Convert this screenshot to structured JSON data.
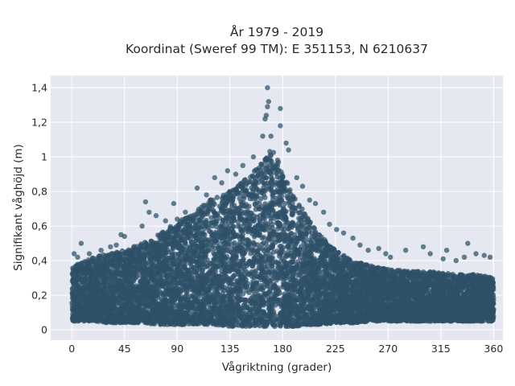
{
  "chart_data": {
    "type": "scatter",
    "title_line1": "År 1979 - 2019",
    "title_line2": "Koordinat (Sweref 99 TM): E 351153, N 6210637",
    "xlabel": "Vågriktning (grader)",
    "ylabel": "Signifikant våghöjd (m)",
    "xlim": [
      -18,
      368
    ],
    "ylim": [
      -0.06,
      1.47
    ],
    "x_ticks": [
      0,
      45,
      90,
      135,
      180,
      225,
      270,
      315,
      360
    ],
    "x_tick_labels": [
      "0",
      "45",
      "90",
      "135",
      "180",
      "225",
      "270",
      "315",
      "360"
    ],
    "y_ticks": [
      0,
      0.2,
      0.4,
      0.6,
      0.8,
      1.0,
      1.2,
      1.4
    ],
    "y_tick_labels": [
      "0",
      "0,2",
      "0,4",
      "0,6",
      "0,8",
      "1",
      "1,2",
      "1,4"
    ],
    "grid": true,
    "legend": "none",
    "marker_color": "#2e5168",
    "background_color": "#e5e8f0",
    "envelope": {
      "x": [
        0,
        10,
        20,
        30,
        45,
        60,
        75,
        90,
        105,
        120,
        135,
        150,
        160,
        165,
        170,
        175,
        180,
        190,
        200,
        210,
        225,
        240,
        255,
        270,
        285,
        300,
        315,
        330,
        345,
        360
      ],
      "y_max": [
        0.36,
        0.4,
        0.42,
        0.44,
        0.46,
        0.5,
        0.56,
        0.62,
        0.68,
        0.76,
        0.8,
        0.88,
        0.95,
        1.0,
        1.05,
        1.0,
        0.92,
        0.78,
        0.66,
        0.56,
        0.46,
        0.4,
        0.37,
        0.35,
        0.34,
        0.34,
        0.33,
        0.32,
        0.32,
        0.3
      ],
      "y_min": [
        0.05,
        0.05,
        0.05,
        0.04,
        0.04,
        0.04,
        0.03,
        0.03,
        0.03,
        0.03,
        0.02,
        0.02,
        0.02,
        0.02,
        0.02,
        0.02,
        0.02,
        0.02,
        0.03,
        0.03,
        0.04,
        0.04,
        0.05,
        0.05,
        0.05,
        0.05,
        0.05,
        0.05,
        0.05,
        0.05
      ]
    },
    "outliers": [
      {
        "x": 167,
        "y": 1.4
      },
      {
        "x": 168,
        "y": 1.32
      },
      {
        "x": 167,
        "y": 1.29
      },
      {
        "x": 166,
        "y": 1.24
      },
      {
        "x": 178,
        "y": 1.28
      },
      {
        "x": 178,
        "y": 1.18
      },
      {
        "x": 165,
        "y": 1.22
      },
      {
        "x": 163,
        "y": 1.12
      },
      {
        "x": 170,
        "y": 1.12
      },
      {
        "x": 183,
        "y": 1.08
      },
      {
        "x": 185,
        "y": 1.04
      },
      {
        "x": 155,
        "y": 1.0
      },
      {
        "x": 2,
        "y": 0.44
      },
      {
        "x": 5,
        "y": 0.42
      },
      {
        "x": 8,
        "y": 0.5
      },
      {
        "x": 15,
        "y": 0.44
      },
      {
        "x": 25,
        "y": 0.46
      },
      {
        "x": 33,
        "y": 0.48
      },
      {
        "x": 38,
        "y": 0.49
      },
      {
        "x": 42,
        "y": 0.55
      },
      {
        "x": 45,
        "y": 0.54
      },
      {
        "x": 60,
        "y": 0.6
      },
      {
        "x": 63,
        "y": 0.74
      },
      {
        "x": 66,
        "y": 0.68
      },
      {
        "x": 72,
        "y": 0.66
      },
      {
        "x": 80,
        "y": 0.63
      },
      {
        "x": 87,
        "y": 0.73
      },
      {
        "x": 90,
        "y": 0.64
      },
      {
        "x": 97,
        "y": 0.68
      },
      {
        "x": 107,
        "y": 0.82
      },
      {
        "x": 115,
        "y": 0.78
      },
      {
        "x": 122,
        "y": 0.88
      },
      {
        "x": 128,
        "y": 0.85
      },
      {
        "x": 133,
        "y": 0.92
      },
      {
        "x": 140,
        "y": 0.9
      },
      {
        "x": 146,
        "y": 0.95
      },
      {
        "x": 192,
        "y": 0.88
      },
      {
        "x": 197,
        "y": 0.83
      },
      {
        "x": 203,
        "y": 0.75
      },
      {
        "x": 208,
        "y": 0.73
      },
      {
        "x": 215,
        "y": 0.68
      },
      {
        "x": 220,
        "y": 0.61
      },
      {
        "x": 226,
        "y": 0.58
      },
      {
        "x": 232,
        "y": 0.56
      },
      {
        "x": 240,
        "y": 0.53
      },
      {
        "x": 246,
        "y": 0.49
      },
      {
        "x": 253,
        "y": 0.46
      },
      {
        "x": 262,
        "y": 0.47
      },
      {
        "x": 268,
        "y": 0.44
      },
      {
        "x": 272,
        "y": 0.42
      },
      {
        "x": 285,
        "y": 0.46
      },
      {
        "x": 300,
        "y": 0.48
      },
      {
        "x": 306,
        "y": 0.44
      },
      {
        "x": 317,
        "y": 0.41
      },
      {
        "x": 320,
        "y": 0.46
      },
      {
        "x": 328,
        "y": 0.4
      },
      {
        "x": 335,
        "y": 0.42
      },
      {
        "x": 338,
        "y": 0.5
      },
      {
        "x": 345,
        "y": 0.44
      },
      {
        "x": 352,
        "y": 0.43
      },
      {
        "x": 357,
        "y": 0.42
      }
    ]
  }
}
